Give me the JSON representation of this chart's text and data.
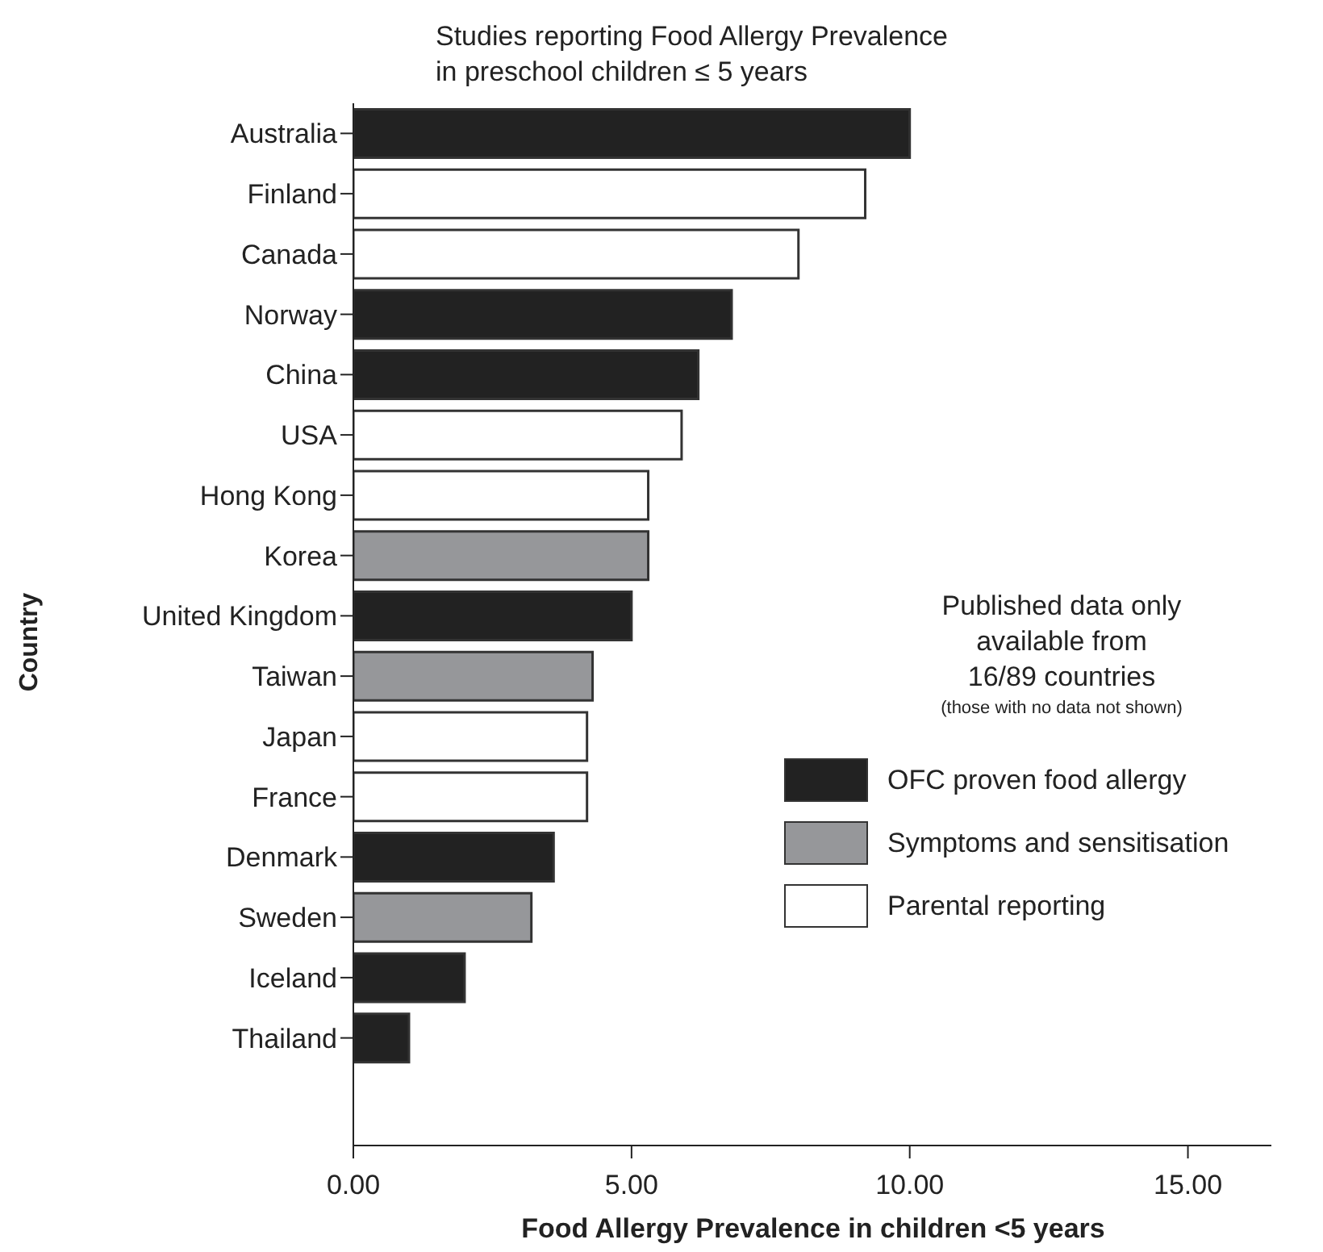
{
  "chart_data": {
    "type": "bar",
    "orientation": "horizontal",
    "stacked": true,
    "title": "Studies reporting Food Allergy Prevalence\nin preschool children ≤ 5 years",
    "xlabel": "Food Allergy Prevalence in children <5 years",
    "ylabel": "Country",
    "categories": [
      "Australia",
      "Finland",
      "Canada",
      "Norway",
      "China",
      "USA",
      "Hong Kong",
      "Korea",
      "United Kingdom",
      "Taiwan",
      "Japan",
      "France",
      "Denmark",
      "Sweden",
      "Iceland",
      "Thailand"
    ],
    "series": [
      {
        "name": "OFC proven food allergy",
        "color": "#222222",
        "values": [
          10.0,
          null,
          null,
          6.8,
          6.2,
          null,
          null,
          null,
          5.0,
          null,
          null,
          null,
          3.6,
          null,
          2.0,
          1.0
        ]
      },
      {
        "name": "Symptoms and sensitisation",
        "color": "#96979a",
        "values": [
          null,
          null,
          null,
          null,
          null,
          null,
          null,
          5.3,
          null,
          4.3,
          null,
          null,
          null,
          3.2,
          null,
          null
        ]
      },
      {
        "name": "Parental reporting",
        "color": "#ffffff",
        "values": [
          null,
          9.2,
          8.0,
          null,
          null,
          5.9,
          5.3,
          null,
          null,
          null,
          4.2,
          4.2,
          null,
          null,
          null,
          null
        ]
      }
    ],
    "xlim": [
      0,
      16.5
    ],
    "xticks": [
      {
        "value": 0,
        "label": "0.00"
      },
      {
        "value": 5,
        "label": "5.00"
      },
      {
        "value": 10,
        "label": "10.00"
      },
      {
        "value": 15,
        "label": "15.00"
      }
    ],
    "legend": "right",
    "annotations": [
      "Published data only\navailable from\n16/89 countries",
      "(those with no data not shown)"
    ]
  }
}
